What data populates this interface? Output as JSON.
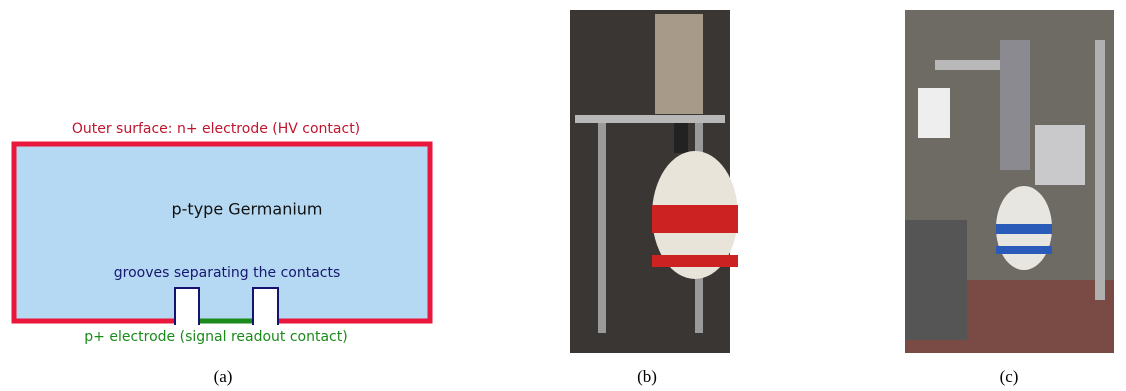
{
  "diagram": {
    "outer_label": "Outer surface: n+ electrode (HV contact)",
    "bulk_label": "p-type Germanium",
    "groove_label": "grooves separating the contacts",
    "inner_label": "p+ electrode (signal readout contact)"
  },
  "captions": [
    "(a)",
    "(b)",
    "(c)"
  ]
}
